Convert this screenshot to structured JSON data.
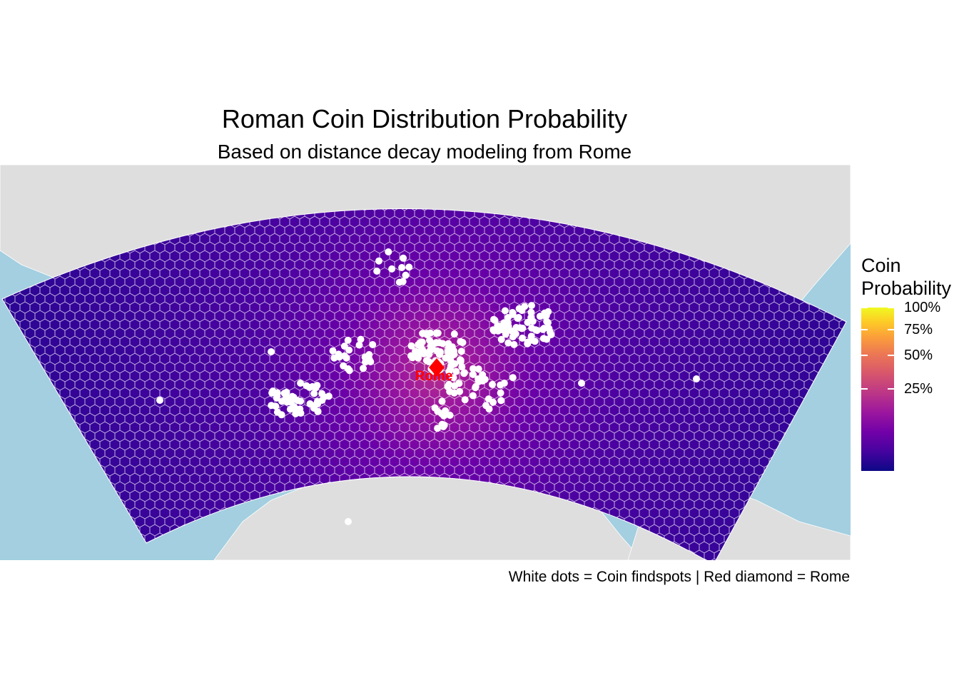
{
  "title": "Roman Coin Distribution Probability",
  "subtitle": "Based on distance decay modeling from Rome",
  "caption": "White dots = Coin findspots | Red diamond = Rome",
  "map": {
    "marker_label": "Rome",
    "colors": {
      "sea": "#a3cfe0",
      "land": "#dedede",
      "findspot": "#ffffff",
      "marker": "#ff0000",
      "hex_stroke": "#ffffff"
    }
  },
  "legend": {
    "title_line1": "Coin",
    "title_line2": "Probability",
    "colormap": "plasma",
    "ticks": [
      {
        "label": "100%",
        "value": 1.0
      },
      {
        "label": "75%",
        "value": 0.75
      },
      {
        "label": "50%",
        "value": 0.5
      },
      {
        "label": "25%",
        "value": 0.25
      }
    ]
  }
}
